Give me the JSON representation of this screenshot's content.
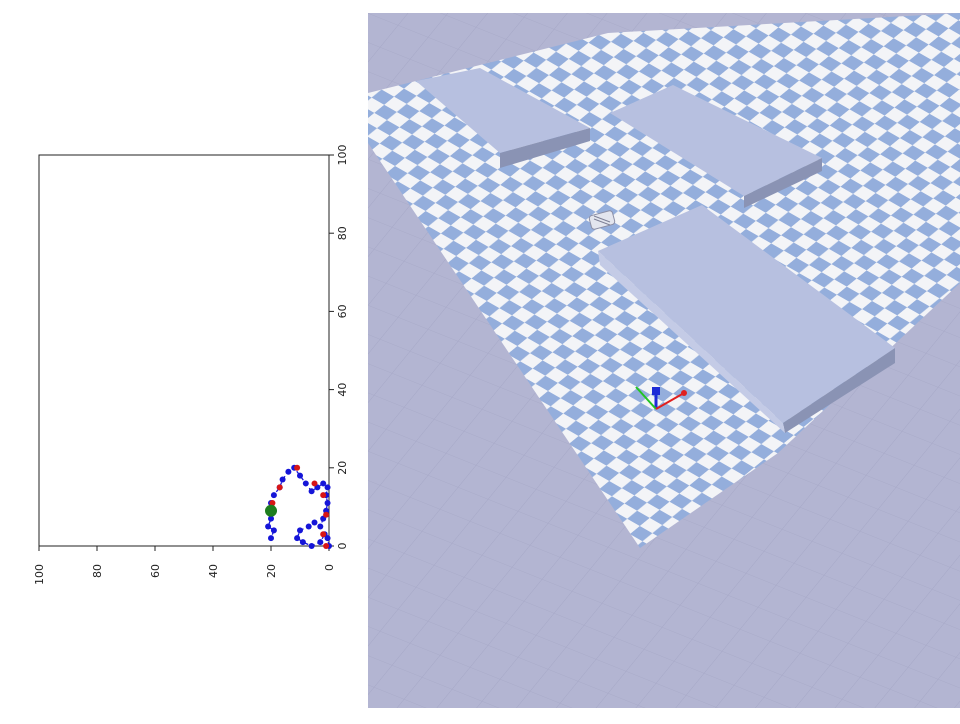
{
  "chart_data": {
    "type": "scatter",
    "orientation": "rotated 90deg clockwise (x axis runs vertically on the right, y axis runs horizontally along the bottom, reversed)",
    "title": "",
    "xlabel": "",
    "ylabel": "",
    "xlim": [
      0,
      100
    ],
    "ylim": [
      0,
      100
    ],
    "xticks": [
      0,
      20,
      40,
      60,
      80,
      100
    ],
    "yticks": [
      0,
      20,
      40,
      60,
      80,
      100
    ],
    "grid": false,
    "series": [
      {
        "color": "#1515d8",
        "style": "dashed line with markers",
        "points": [
          [
            0,
            0
          ],
          [
            2,
            0.5
          ],
          [
            3,
            1.5
          ],
          [
            1,
            3
          ],
          [
            0,
            6
          ],
          [
            1,
            9
          ],
          [
            2,
            11
          ],
          [
            4,
            10
          ],
          [
            5,
            7
          ],
          [
            6,
            5
          ],
          [
            5,
            3
          ],
          [
            7,
            2
          ],
          [
            9,
            1
          ],
          [
            11,
            0.5
          ],
          [
            13,
            1
          ],
          [
            15,
            0.5
          ],
          [
            16,
            2
          ],
          [
            15,
            4
          ],
          [
            14,
            6
          ],
          [
            16,
            8
          ],
          [
            18,
            10
          ],
          [
            20,
            12
          ],
          [
            19,
            14
          ],
          [
            17,
            16
          ],
          [
            15,
            17
          ],
          [
            13,
            19
          ],
          [
            11,
            20
          ],
          [
            9,
            19
          ],
          [
            7,
            20
          ],
          [
            5,
            21
          ],
          [
            4,
            19
          ],
          [
            2,
            20
          ]
        ]
      },
      {
        "color": "#d81515",
        "style": "markers",
        "points": [
          [
            0,
            1
          ],
          [
            3,
            2
          ],
          [
            8,
            1
          ],
          [
            13,
            2
          ],
          [
            16,
            5
          ],
          [
            20,
            11
          ],
          [
            15,
            17
          ],
          [
            11,
            19.5
          ]
        ]
      },
      {
        "color": "#1e7d1e",
        "style": "large marker",
        "points": [
          [
            9,
            20
          ]
        ]
      }
    ]
  },
  "sim": {
    "ground_color": "#b3b5d2",
    "tile_light": "#f3f4f7",
    "tile_blue": "#94aedc",
    "box_color": "#b7c0e0"
  }
}
